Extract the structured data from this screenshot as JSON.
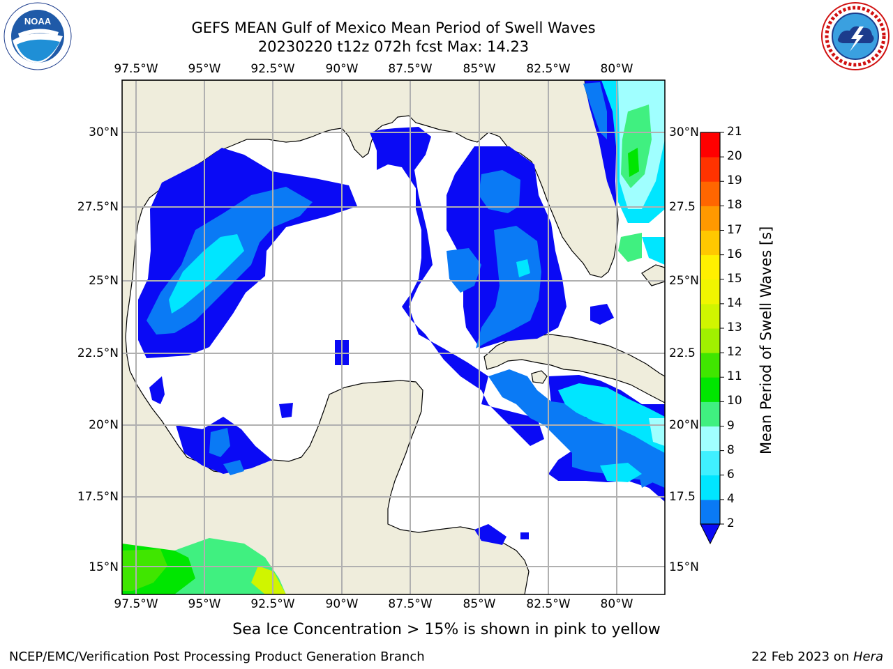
{
  "header": {
    "title_line1": "GEFS MEAN Gulf of Mexico Mean Period of Swell Waves",
    "title_line2": "20230220 t12z 072h fcst   Max: 14.23"
  },
  "logos": {
    "left": {
      "name": "NOAA",
      "ring_text": "NATIONAL OCEANIC AND ATMOSPHERIC ADMINISTRATION · U.S. DEPARTMENT OF COMMERCE"
    },
    "right": {
      "name": "National Weather Service",
      "ring_text": "NATIONAL WEATHER SERVICE"
    }
  },
  "map": {
    "lon_labels": [
      "97.5°W",
      "95°W",
      "92.5°W",
      "90°W",
      "87.5°W",
      "85°W",
      "82.5°W",
      "80°W"
    ],
    "lat_labels_left": [
      "30°N",
      "27.5°N",
      "25°N",
      "22.5°N",
      "20°N",
      "17.5°N",
      "15°N"
    ],
    "lat_labels_right": [
      "30°N",
      "27.5",
      "25°N",
      "22.5",
      "20°N",
      "17.5",
      "15°N"
    ],
    "land_color": "#efeddc",
    "grid_color": "#b0b0b0"
  },
  "colorbar": {
    "title": "Mean Period of Swell Waves [s]",
    "tick_labels": [
      "2",
      "4",
      "6",
      "8",
      "9",
      "10",
      "11",
      "12",
      "13",
      "14",
      "15",
      "16",
      "17",
      "18",
      "19",
      "20",
      "21"
    ],
    "colors": [
      "#0a0af5",
      "#0a7af5",
      "#00e6ff",
      "#40f0ff",
      "#a0ffff",
      "#40f080",
      "#00e600",
      "#40e600",
      "#a0f000",
      "#d0f500",
      "#f0f500",
      "#fff000",
      "#ffc800",
      "#ff9900",
      "#ff6600",
      "#ff3300",
      "#ff0000"
    ]
  },
  "caption": "Sea Ice Concentration > 15% is shown in pink to yellow",
  "footer": {
    "left": "NCEP/EMC/Verification Post Processing Product Generation Branch",
    "right_prefix": "22 Feb 2023 on ",
    "right_host": "Hera"
  }
}
